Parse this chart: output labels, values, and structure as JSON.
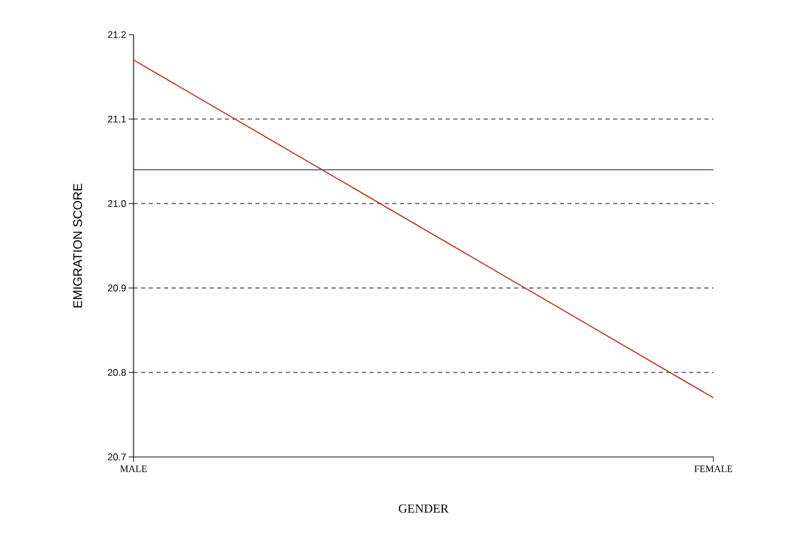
{
  "chart_data": {
    "type": "line",
    "xlabel": "GENDER",
    "ylabel": "EMIGRATION SCORE",
    "categories": [
      "MALE",
      "FEMALE"
    ],
    "series": [
      {
        "color": "#b5301c",
        "values": [
          21.17,
          20.77
        ]
      },
      {
        "color": "#4848a8",
        "values": [
          21.04,
          21.04
        ]
      }
    ],
    "ylim": [
      20.7,
      21.2
    ],
    "yticks": [
      20.7,
      20.8,
      20.9,
      {
        "value": 21,
        "label": "21.0"
      },
      21.1,
      21.2
    ],
    "ref_lines": [
      {
        "axis": "y",
        "value": 20.8,
        "color": "#000000",
        "line_style": "dashed"
      },
      {
        "axis": "y",
        "value": 20.9,
        "color": "#000000",
        "line_style": "dashed"
      },
      {
        "axis": "y",
        "value": 21.0,
        "color": "#000000",
        "line_style": "dashed"
      },
      {
        "axis": "y",
        "value": 21.1,
        "color": "#000000",
        "line_style": "dashed"
      }
    ],
    "grid": false,
    "marker": "none",
    "line_style": "solid"
  }
}
